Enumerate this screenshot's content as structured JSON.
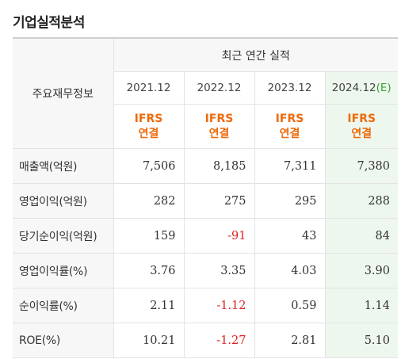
{
  "section_title": "기업실적분석",
  "table": {
    "corner_label": "주요재무정보",
    "group_label": "최근 연간 실적",
    "columns": [
      {
        "year": "2021.12",
        "est": "",
        "std_line1": "IFRS",
        "std_line2": "연결"
      },
      {
        "year": "2022.12",
        "est": "",
        "std_line1": "IFRS",
        "std_line2": "연결"
      },
      {
        "year": "2023.12",
        "est": "",
        "std_line1": "IFRS",
        "std_line2": "연결"
      },
      {
        "year": "2024.12",
        "est": "(E)",
        "std_line1": "IFRS",
        "std_line2": "연결"
      }
    ],
    "rows": [
      {
        "label": "매출액(억원)",
        "values": [
          "7,506",
          "8,185",
          "7,311",
          "7,380"
        ]
      },
      {
        "label": "영업이익(억원)",
        "values": [
          "282",
          "275",
          "295",
          "288"
        ]
      },
      {
        "label": "당기순이익(억원)",
        "values": [
          "159",
          "-91",
          "43",
          "84"
        ]
      },
      {
        "label": "영업이익률(%)",
        "values": [
          "3.76",
          "3.35",
          "4.03",
          "3.90"
        ]
      },
      {
        "label": "순이익률(%)",
        "values": [
          "2.11",
          "-1.12",
          "0.59",
          "1.14"
        ]
      },
      {
        "label": "ROE(%)",
        "values": [
          "10.21",
          "-1.27",
          "2.81",
          "5.10"
        ]
      }
    ]
  },
  "colors": {
    "ifrs_text": "#ee6a0c",
    "negative_value": "#e02020",
    "estimate_bg": "#eef7ee",
    "estimate_mark": "#33a333",
    "header_bg": "#f7f7f7"
  }
}
